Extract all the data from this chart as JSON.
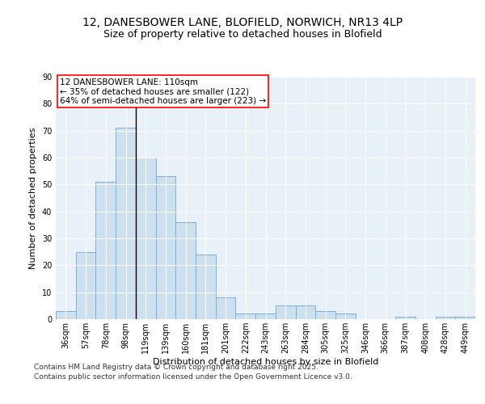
{
  "title1": "12, DANESBOWER LANE, BLOFIELD, NORWICH, NR13 4LP",
  "title2": "Size of property relative to detached houses in Blofield",
  "xlabel": "Distribution of detached houses by size in Blofield",
  "ylabel": "Number of detached properties",
  "bar_color": "#cce0f0",
  "bar_edge_color": "#7bafd4",
  "background_color": "#e8f0f8",
  "grid_color": "#ffffff",
  "categories": [
    "36sqm",
    "57sqm",
    "78sqm",
    "98sqm",
    "119sqm",
    "139sqm",
    "160sqm",
    "181sqm",
    "201sqm",
    "222sqm",
    "243sqm",
    "263sqm",
    "284sqm",
    "305sqm",
    "325sqm",
    "346sqm",
    "366sqm",
    "387sqm",
    "408sqm",
    "428sqm",
    "449sqm"
  ],
  "values": [
    3,
    25,
    51,
    71,
    60,
    53,
    36,
    24,
    8,
    2,
    2,
    5,
    5,
    3,
    2,
    0,
    0,
    1,
    0,
    1,
    1
  ],
  "ylim": [
    0,
    90
  ],
  "yticks": [
    0,
    10,
    20,
    30,
    40,
    50,
    60,
    70,
    80,
    90
  ],
  "annotation_text": "12 DANESBOWER LANE: 110sqm\n← 35% of detached houses are smaller (122)\n64% of semi-detached houses are larger (223) →",
  "vline_bar_index": 4,
  "footer": "Contains HM Land Registry data © Crown copyright and database right 2025.\nContains public sector information licensed under the Open Government Licence v3.0.",
  "title_fontsize": 10,
  "subtitle_fontsize": 9,
  "annotation_fontsize": 7.5,
  "footer_fontsize": 6.5,
  "axis_label_fontsize": 8,
  "tick_fontsize": 7
}
